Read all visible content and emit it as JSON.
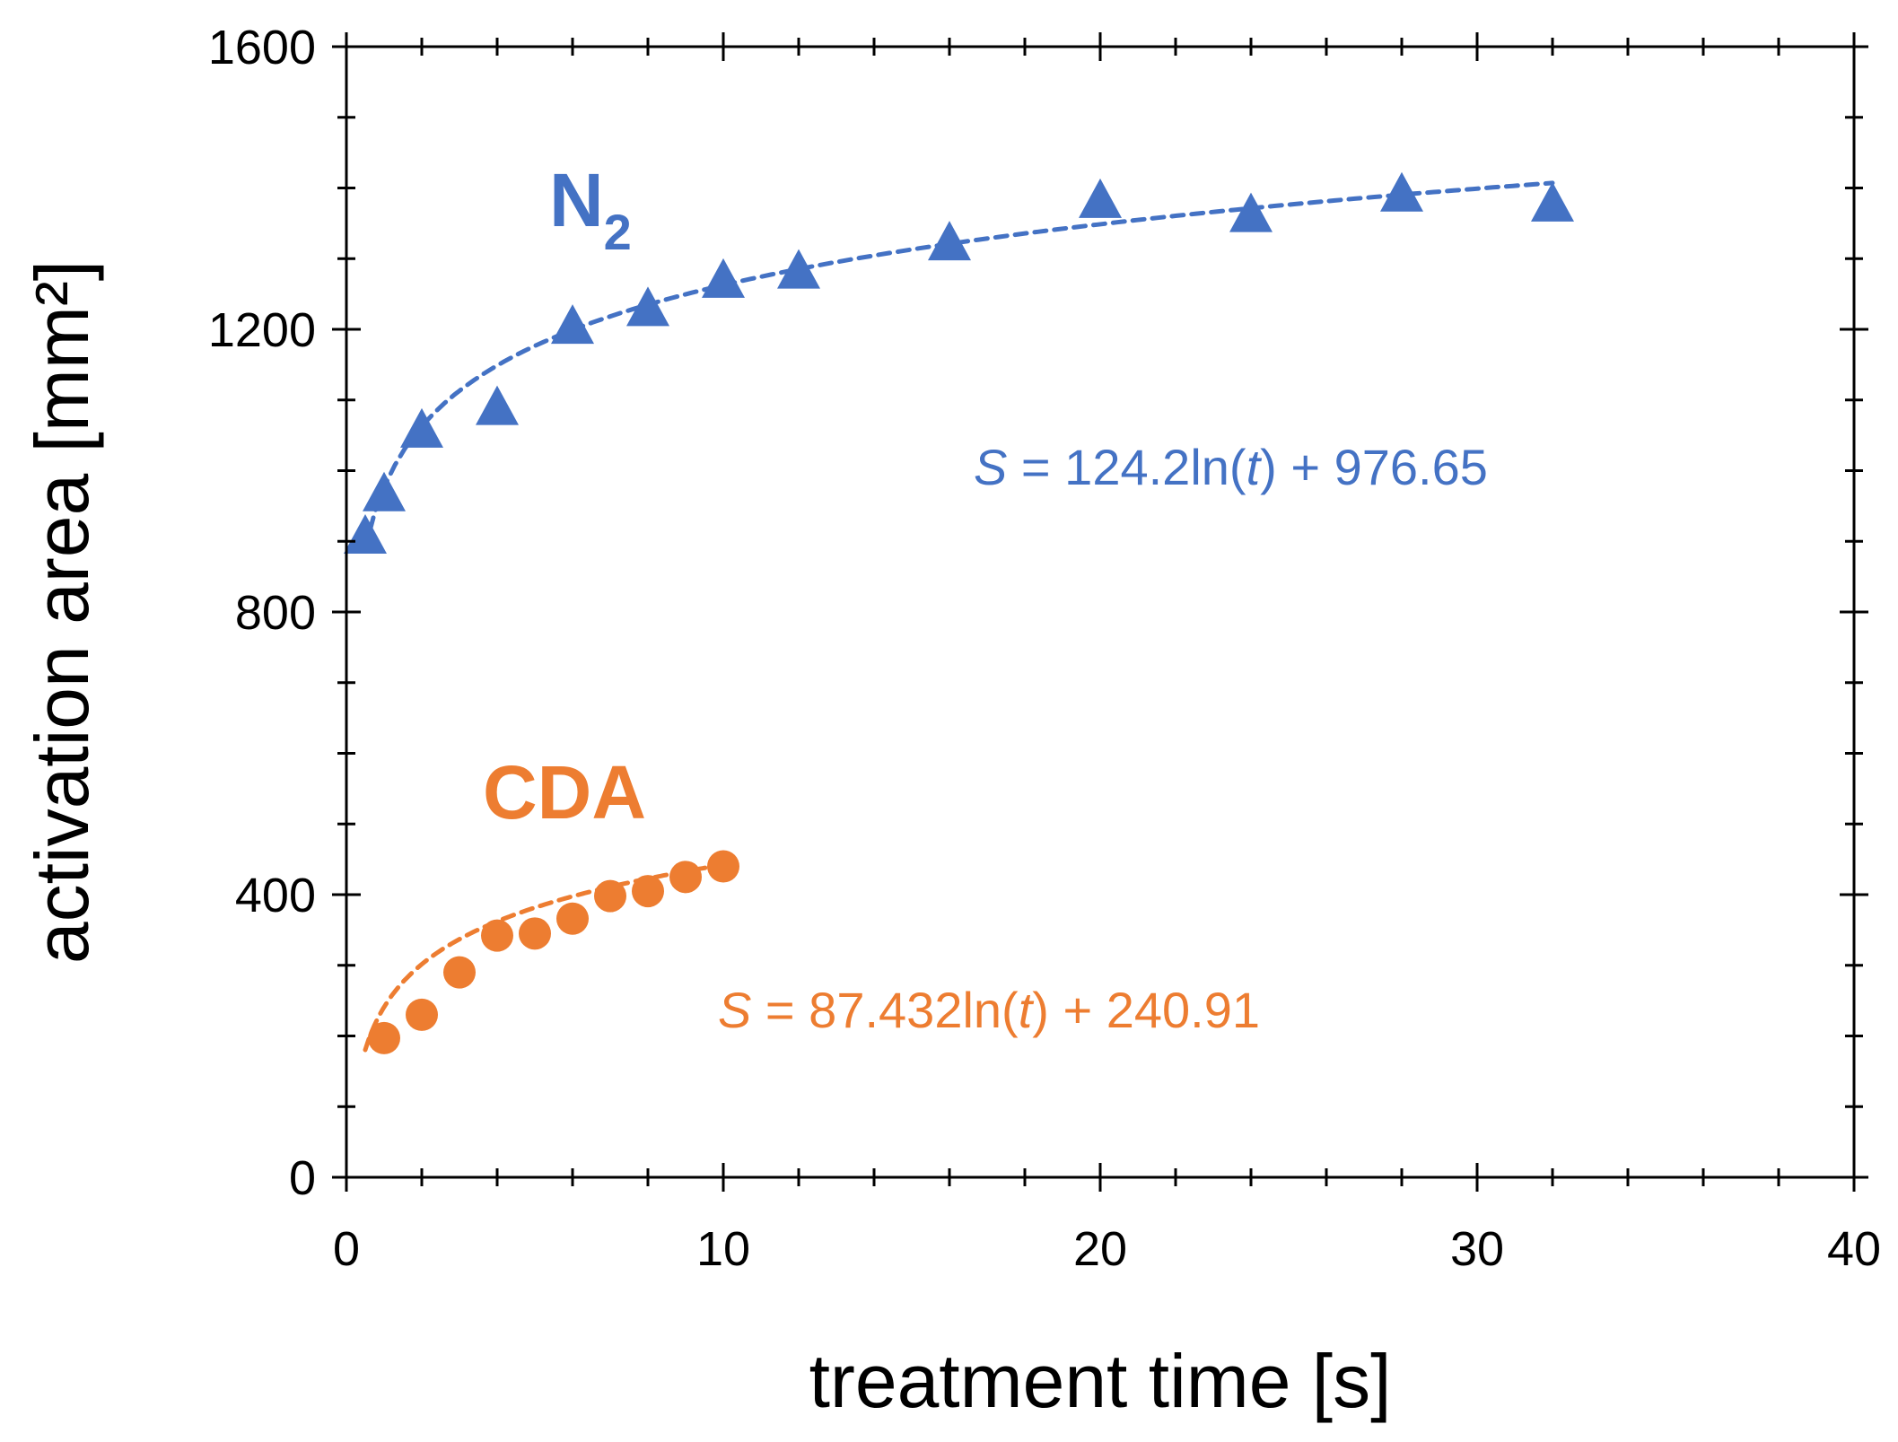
{
  "chart_data": {
    "type": "scatter",
    "xlabel": "treatment time [s]",
    "ylabel": "activation area [mm²]",
    "xlim": [
      0,
      40
    ],
    "ylim": [
      0,
      1600
    ],
    "xticks": [
      "0",
      "10",
      "20",
      "30",
      "40"
    ],
    "yticks": [
      "0",
      "400",
      "800",
      "1200",
      "1600"
    ],
    "grid": false,
    "series": [
      {
        "name": "N₂",
        "name_base": "N",
        "name_sub": "2",
        "marker": "triangle",
        "color": "#4472C4",
        "x": [
          0.5,
          1,
          2,
          4,
          6,
          8,
          10,
          12,
          16,
          20,
          24,
          28,
          32
        ],
        "y": [
          908,
          968,
          1058,
          1090,
          1205,
          1230,
          1270,
          1283,
          1323,
          1383,
          1363,
          1392,
          1378
        ],
        "fit": {
          "a": 124.2,
          "b": 976.65,
          "x_range": [
            0.5,
            32
          ]
        },
        "equation": {
          "var": "S",
          "rest_a": " = 124.2ln(",
          "t": "t",
          "rest_b": ") + 976.65"
        }
      },
      {
        "name": "CDA",
        "marker": "circle",
        "color": "#ED7D31",
        "x": [
          1,
          2,
          3,
          4,
          5,
          6,
          7,
          8,
          9,
          10
        ],
        "y": [
          197,
          230,
          290,
          342,
          345,
          366,
          398,
          405,
          425,
          440
        ],
        "fit": {
          "a": 87.432,
          "b": 240.91,
          "x_range": [
            0.5,
            10
          ]
        },
        "equation": {
          "var": "S",
          "rest_a": " = 87.432ln(",
          "t": "t",
          "rest_b": ") + 240.91"
        }
      }
    ]
  }
}
